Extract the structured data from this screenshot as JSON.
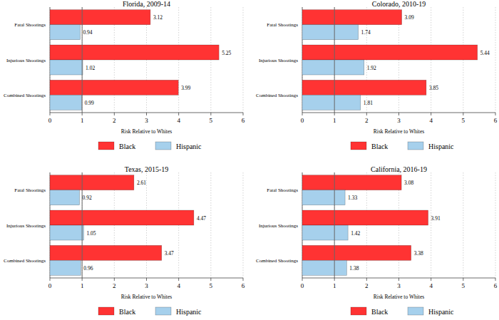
{
  "chart_data": [
    {
      "type": "bar",
      "title": "Florida, 2009-14",
      "orientation": "horizontal",
      "categories": [
        "Fatal Shootings",
        "Injurious Shootings",
        "Combined Shootings"
      ],
      "series": [
        {
          "name": "Black",
          "color": "#ff3333",
          "values": [
            3.12,
            5.25,
            3.99
          ]
        },
        {
          "name": "Hispanic",
          "color": "#a6d0ec",
          "values": [
            0.94,
            1.02,
            0.99
          ]
        }
      ],
      "xlabel": "Risk Relative to Whites",
      "xlim": [
        0,
        6
      ],
      "xticks": [
        0,
        1,
        2,
        3,
        4,
        5,
        6
      ],
      "reference_line": 1,
      "grid": true,
      "data_labels": true,
      "legend": "bottom"
    },
    {
      "type": "bar",
      "title": "Colorado, 2010-19",
      "orientation": "horizontal",
      "categories": [
        "Fatal Shootings",
        "Injurious Shootings",
        "Combined Shootings"
      ],
      "series": [
        {
          "name": "Black",
          "color": "#ff3333",
          "values": [
            3.09,
            5.44,
            3.85
          ]
        },
        {
          "name": "Hispanic",
          "color": "#a6d0ec",
          "values": [
            1.74,
            1.92,
            1.81
          ]
        }
      ],
      "xlabel": "Risk Relative to Whites",
      "xlim": [
        0,
        6
      ],
      "xticks": [
        0,
        1,
        2,
        3,
        4,
        5,
        6
      ],
      "reference_line": 1,
      "grid": true,
      "data_labels": true,
      "legend": "bottom"
    },
    {
      "type": "bar",
      "title": "Texas, 2015-19",
      "orientation": "horizontal",
      "categories": [
        "Fatal Shootings",
        "Injurious Shootings",
        "Combined Shootings"
      ],
      "series": [
        {
          "name": "Black",
          "color": "#ff3333",
          "values": [
            2.61,
            4.47,
            3.47
          ]
        },
        {
          "name": "Hispanic",
          "color": "#a6d0ec",
          "values": [
            0.92,
            1.05,
            0.96
          ]
        }
      ],
      "xlabel": "Risk Relative to Whites",
      "xlim": [
        0,
        6
      ],
      "xticks": [
        0,
        1,
        2,
        3,
        4,
        5,
        6
      ],
      "reference_line": 1,
      "grid": true,
      "data_labels": true,
      "legend": "bottom"
    },
    {
      "type": "bar",
      "title": "California, 2016-19",
      "orientation": "horizontal",
      "categories": [
        "Fatal Shootings",
        "Injurious Shootings",
        "Combined Shootings"
      ],
      "series": [
        {
          "name": "Black",
          "color": "#ff3333",
          "values": [
            3.08,
            3.91,
            3.38
          ]
        },
        {
          "name": "Hispanic",
          "color": "#a6d0ec",
          "values": [
            1.33,
            1.42,
            1.38
          ]
        }
      ],
      "xlabel": "Risk Relative to Whites",
      "xlim": [
        0,
        6
      ],
      "xticks": [
        0,
        1,
        2,
        3,
        4,
        5,
        6
      ],
      "reference_line": 1,
      "grid": true,
      "data_labels": true,
      "legend": "bottom"
    }
  ]
}
